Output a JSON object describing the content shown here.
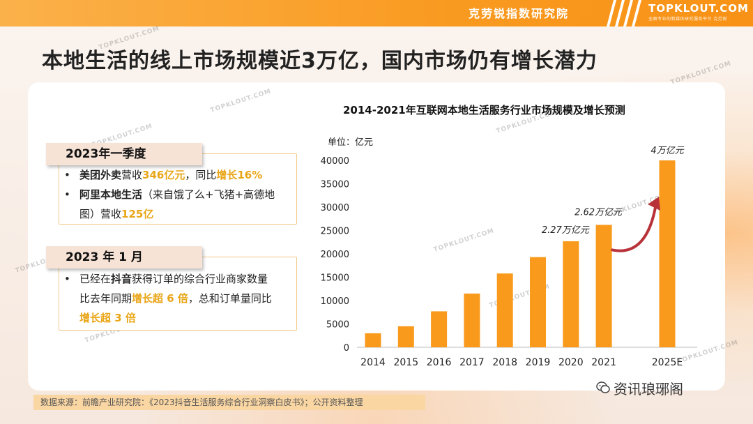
{
  "header": {
    "brand_cn": "克劳锐指数研究院",
    "brand_en": "TOPKLOUT.COM",
    "brand_sub": "全面专业的新媒体研究服务平台 克劳锐"
  },
  "page_title": "本地生活的线上市场规模近3万亿，国内市场仍有增长潜力",
  "box1": {
    "heading": "2023年一季度",
    "item1": {
      "p1": "美团外卖",
      "p2": "营收",
      "p3": "346亿元",
      "p4": "，同比",
      "p5": "增长16%"
    },
    "item2": {
      "p1": "阿里本地生活",
      "p2": "（来自饿了么+飞猪+高德地",
      "p3": "图）营收",
      "p4": "125亿"
    }
  },
  "box2": {
    "heading": "2023 年 1 月",
    "item1": {
      "p1": "已经在",
      "p2": "抖音",
      "p3": "获得订单的综合行业商家数量",
      "p4": "比去年同期",
      "p5": "增长超 6 倍",
      "p6": "，总和订单量同比",
      "p7": "增长超 3 倍"
    }
  },
  "chart_data": {
    "type": "bar",
    "title": "2014-2021年互联网本地生活服务行业市场规模及增长预测",
    "unit_label": "单位：亿元",
    "categories": [
      "2014",
      "2015",
      "2016",
      "2017",
      "2018",
      "2019",
      "2020",
      "2021",
      "2025E"
    ],
    "values": [
      3000,
      4500,
      7700,
      11500,
      15800,
      19300,
      22700,
      26200,
      40000
    ],
    "ylim": [
      0,
      40000
    ],
    "yticks": [
      0,
      5000,
      10000,
      15000,
      20000,
      25000,
      30000,
      35000,
      40000
    ],
    "bar_color": "#f99a1c",
    "annotations": [
      {
        "category": "2020",
        "text": "2.27万亿元"
      },
      {
        "category": "2021",
        "text": "2.62万亿元"
      },
      {
        "category": "2025E",
        "text": "4万亿元"
      }
    ],
    "arrow_color": "#b8323a",
    "grid": false
  },
  "footer": {
    "source": "数据来源：前瞻产业研究院：《2023抖音生活服务综合行业洞察白皮书》；公开资料整理",
    "wechat": "资讯琅琊阁"
  },
  "watermark": "TOPKLOUT.COM"
}
